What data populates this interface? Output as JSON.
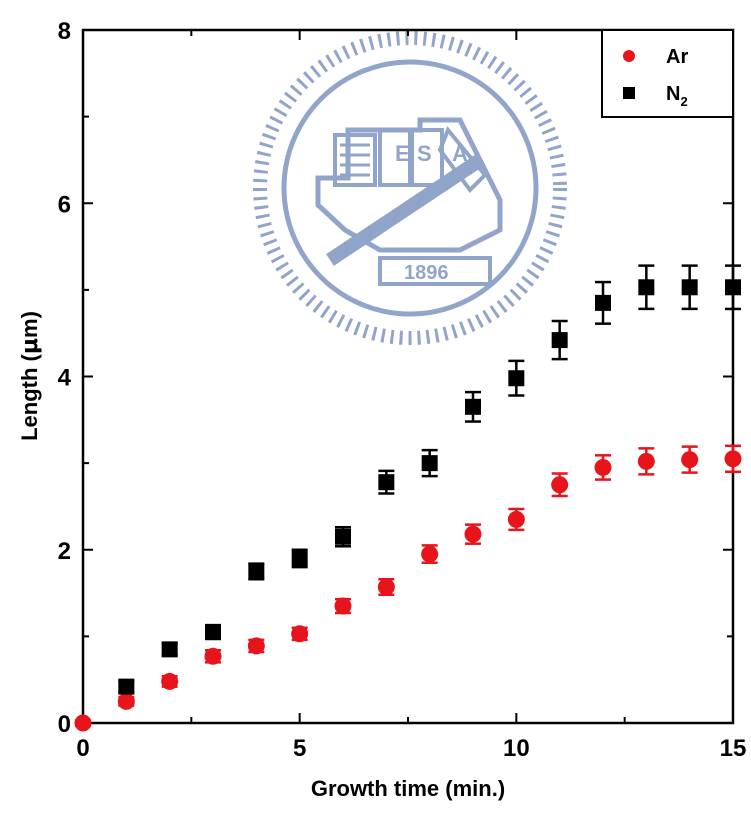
{
  "chart_data": {
    "type": "scatter",
    "xlabel": "Growth time (min.)",
    "ylabel_main": "Length (",
    "ylabel_symbol": "μ",
    "ylabel_unit": "m)",
    "xlim": [
      0,
      15
    ],
    "ylim": [
      0,
      8
    ],
    "x_ticks": [
      "0",
      "5",
      "10",
      "15"
    ],
    "y_ticks": [
      "0",
      "2",
      "4",
      "6",
      "8"
    ],
    "grid": false,
    "legend_position": "top-right",
    "watermark_text": "1896",
    "watermark_letters": [
      "E",
      "S",
      "A"
    ],
    "series": [
      {
        "name": "Ar",
        "name_sub": "",
        "marker": "circle",
        "color": "#e8141c",
        "x": [
          0,
          1,
          2,
          3,
          4,
          5,
          6,
          7,
          8,
          9,
          10,
          11,
          12,
          13,
          14,
          15
        ],
        "y": [
          0.0,
          0.25,
          0.48,
          0.77,
          0.89,
          1.03,
          1.35,
          1.57,
          1.95,
          2.18,
          2.35,
          2.75,
          2.95,
          3.02,
          3.04,
          3.05
        ],
        "err": [
          0.03,
          0.05,
          0.06,
          0.07,
          0.07,
          0.07,
          0.08,
          0.09,
          0.1,
          0.11,
          0.12,
          0.13,
          0.14,
          0.15,
          0.15,
          0.15
        ]
      },
      {
        "name": "N",
        "name_sub": "2",
        "marker": "square",
        "color": "#000000",
        "x": [
          1,
          2,
          3,
          4,
          5,
          6,
          7,
          8,
          9,
          10,
          11,
          12,
          13,
          14,
          15
        ],
        "y": [
          0.42,
          0.85,
          1.05,
          1.75,
          1.9,
          2.15,
          2.78,
          3.0,
          3.65,
          3.98,
          4.42,
          4.85,
          5.03,
          5.03,
          5.03
        ],
        "err": [
          0.06,
          0.07,
          0.08,
          0.09,
          0.1,
          0.11,
          0.13,
          0.15,
          0.17,
          0.2,
          0.22,
          0.24,
          0.25,
          0.25,
          0.25
        ]
      }
    ]
  }
}
